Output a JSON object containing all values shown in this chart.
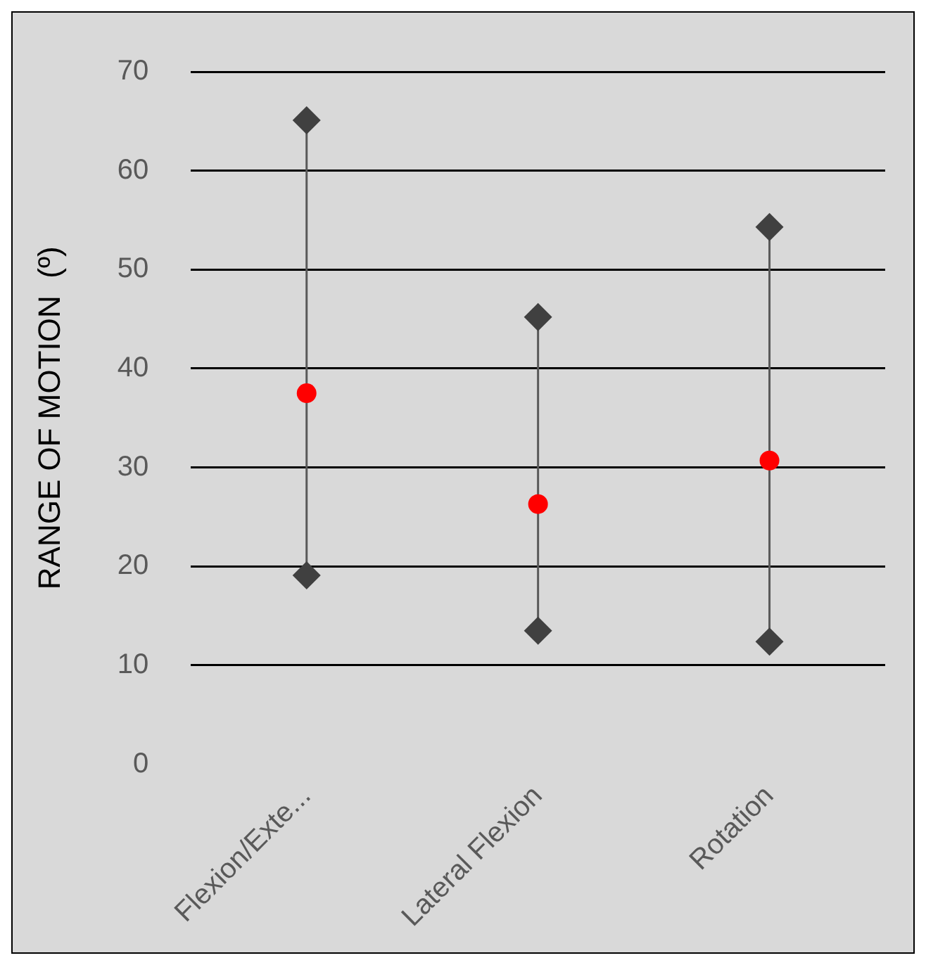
{
  "chart_data": {
    "type": "scatter",
    "ylabel": "RANGE OF MOTION  (º)",
    "categories": [
      "Flexion/Exte...",
      "Lateral Flexion",
      "Rotation"
    ],
    "ylim": [
      0,
      70
    ],
    "yticks": [
      0,
      10,
      20,
      30,
      40,
      50,
      60,
      70
    ],
    "grid": "y",
    "legend": false,
    "series": [
      {
        "color": "#404040",
        "marker": "diamond",
        "values": [
          65.1,
          45.2,
          54.3
        ]
      },
      {
        "color": "#404040",
        "marker": "diamond",
        "values": [
          19.1,
          13.5,
          12.4
        ]
      },
      {
        "color": "#ff0000",
        "marker": "circle",
        "values": [
          37.5,
          26.3,
          30.7
        ]
      }
    ]
  }
}
